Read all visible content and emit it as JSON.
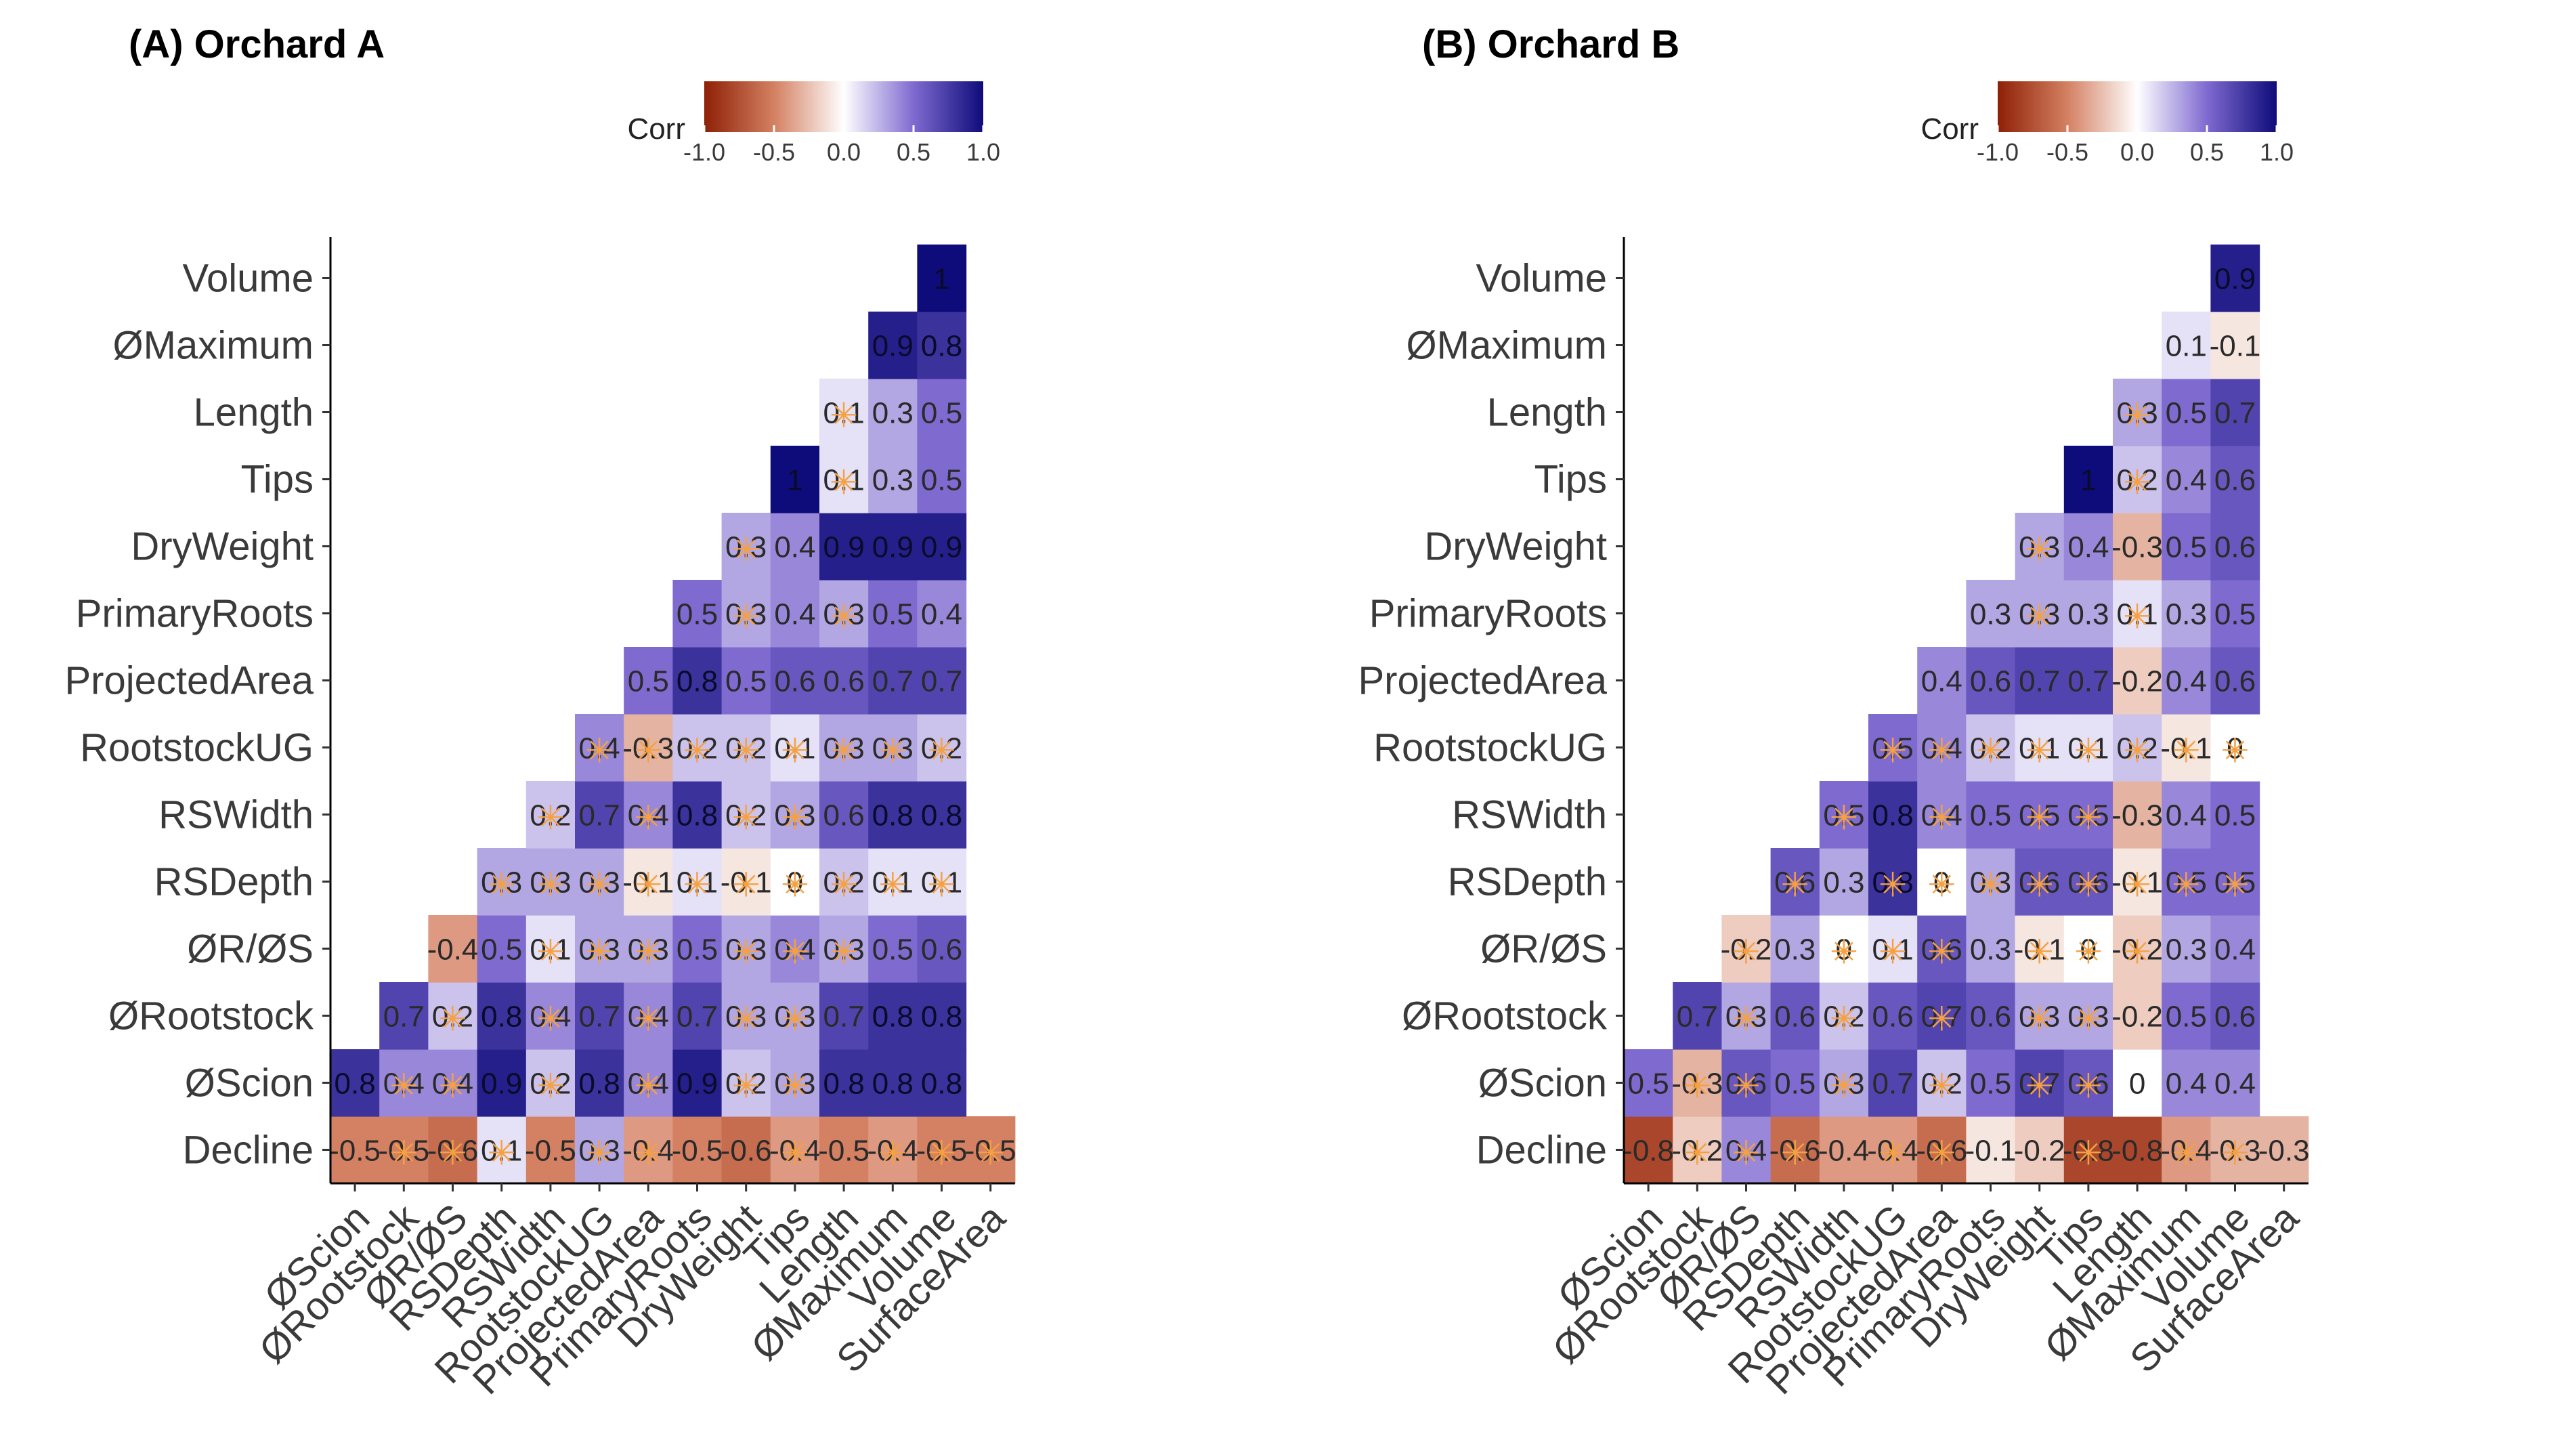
{
  "chart_data": [
    {
      "type": "heatmap",
      "title": "(A) Orchard A",
      "legend": {
        "title": "Corr",
        "range": [
          -1.0,
          1.0
        ],
        "tick_labels": [
          "-1.0",
          "-0.5",
          "0.0",
          "0.5",
          "1.0"
        ],
        "placement": "top-center"
      },
      "x_categories": [
        "ØScion",
        "ØRootstock",
        "ØR/ØS",
        "RSDepth",
        "RSWidth",
        "RootstockUG",
        "ProjectedArea",
        "PrimaryRoots",
        "DryWeight",
        "Tips",
        "Length",
        "ØMaximum",
        "Volume",
        "SurfaceArea"
      ],
      "y_categories": [
        "Decline",
        "ØScion",
        "ØRootstock",
        "ØR/ØS",
        "RSDepth",
        "RSWidth",
        "RootstockUG",
        "ProjectedArea",
        "PrimaryRoots",
        "DryWeight",
        "Tips",
        "Length",
        "ØMaximum",
        "Volume"
      ],
      "rows": [
        {
          "y": "Decline",
          "values": [
            -0.5,
            -0.5,
            -0.6,
            0.1,
            -0.5,
            0.3,
            -0.4,
            -0.5,
            -0.6,
            -0.4,
            -0.5,
            -0.4,
            -0.5,
            -0.5
          ],
          "labels": [
            "-0.5",
            "-0.5",
            "-0.6",
            "0.1",
            "-0.5",
            "0.3",
            "-0.4",
            "-0.5",
            "-0.6",
            "-0.4",
            "-0.5",
            "-0.4",
            "-0.5",
            "-0.5"
          ],
          "nonsig": [
            false,
            true,
            true,
            true,
            false,
            true,
            true,
            false,
            false,
            true,
            false,
            true,
            true,
            true
          ]
        },
        {
          "y": "ØScion",
          "values": [
            0.8,
            0.4,
            0.4,
            0.9,
            0.2,
            0.8,
            0.4,
            0.9,
            0.2,
            0.3,
            0.8,
            0.8,
            0.8
          ],
          "labels": [
            "0.8",
            "0.4",
            "0.4",
            "0.9",
            "0.2",
            "0.8",
            "0.4",
            "0.9",
            "0.2",
            "0.3",
            "0.8",
            "0.8",
            "0.8"
          ],
          "nonsig": [
            false,
            true,
            true,
            false,
            true,
            false,
            true,
            false,
            true,
            true,
            false,
            false,
            false
          ]
        },
        {
          "y": "ØRootstock",
          "values": [
            0.7,
            0.2,
            0.8,
            0.4,
            0.7,
            0.4,
            0.7,
            0.3,
            0.3,
            0.7,
            0.8,
            0.8
          ],
          "labels": [
            "0.7",
            "0.2",
            "0.8",
            "0.4",
            "0.7",
            "0.4",
            "0.7",
            "0.3",
            "0.3",
            "0.7",
            "0.8",
            "0.8"
          ],
          "nonsig": [
            false,
            true,
            false,
            true,
            false,
            true,
            false,
            true,
            true,
            false,
            false,
            false
          ]
        },
        {
          "y": "ØR/ØS",
          "values": [
            -0.4,
            0.5,
            0.1,
            0.3,
            0.3,
            0.5,
            0.3,
            0.4,
            0.3,
            0.5,
            0.6
          ],
          "labels": [
            "-0.4",
            "0.5",
            "0.1",
            "0.3",
            "0.3",
            "0.5",
            "0.3",
            "0.4",
            "0.3",
            "0.5",
            "0.6"
          ],
          "nonsig": [
            false,
            false,
            true,
            true,
            true,
            false,
            true,
            true,
            true,
            false,
            false
          ]
        },
        {
          "y": "RSDepth",
          "values": [
            0.3,
            0.3,
            0.3,
            -0.1,
            0.1,
            -0.1,
            0,
            0.2,
            0.1,
            0.1
          ],
          "labels": [
            "0.3",
            "0.3",
            "0.3",
            "-0.1",
            "0.1",
            "-0.1",
            "0",
            "0.2",
            "0.1",
            "0.1"
          ],
          "nonsig": [
            true,
            true,
            true,
            true,
            true,
            true,
            true,
            true,
            true,
            true
          ]
        },
        {
          "y": "RSWidth",
          "values": [
            0.2,
            0.7,
            0.4,
            0.8,
            0.2,
            0.3,
            0.6,
            0.8,
            0.8
          ],
          "labels": [
            "0.2",
            "0.7",
            "0.4",
            "0.8",
            "0.2",
            "0.3",
            "0.6",
            "0.8",
            "0.8"
          ],
          "nonsig": [
            true,
            false,
            true,
            false,
            true,
            true,
            false,
            false,
            false
          ]
        },
        {
          "y": "RootstockUG",
          "values": [
            0.4,
            -0.3,
            0.2,
            0.2,
            0.1,
            0.3,
            0.3,
            0.2
          ],
          "labels": [
            "0.4",
            "-0.3",
            "0.2",
            "0.2",
            "0.1",
            "0.3",
            "0.3",
            "0.2"
          ],
          "nonsig": [
            true,
            true,
            true,
            true,
            true,
            true,
            true,
            true
          ]
        },
        {
          "y": "ProjectedArea",
          "values": [
            0.5,
            0.8,
            0.5,
            0.6,
            0.6,
            0.7,
            0.7
          ],
          "labels": [
            "0.5",
            "0.8",
            "0.5",
            "0.6",
            "0.6",
            "0.7",
            "0.7"
          ],
          "nonsig": [
            false,
            false,
            false,
            false,
            false,
            false,
            false
          ]
        },
        {
          "y": "PrimaryRoots",
          "values": [
            0.5,
            0.3,
            0.4,
            0.3,
            0.5,
            0.4
          ],
          "labels": [
            "0.5",
            "0.3",
            "0.4",
            "0.3",
            "0.5",
            "0.4"
          ],
          "nonsig": [
            false,
            true,
            false,
            true,
            false,
            false
          ]
        },
        {
          "y": "DryWeight",
          "values": [
            0.3,
            0.4,
            0.9,
            0.9,
            0.9
          ],
          "labels": [
            "0.3",
            "0.4",
            "0.9",
            "0.9",
            "0.9"
          ],
          "nonsig": [
            true,
            false,
            false,
            false,
            false
          ]
        },
        {
          "y": "Tips",
          "values": [
            1,
            0.1,
            0.3,
            0.5
          ],
          "labels": [
            "1",
            "0.1",
            "0.3",
            "0.5"
          ],
          "nonsig": [
            false,
            true,
            false,
            false
          ]
        },
        {
          "y": "Length",
          "values": [
            0.1,
            0.3,
            0.5
          ],
          "labels": [
            "0.1",
            "0.3",
            "0.5"
          ],
          "nonsig": [
            true,
            false,
            false
          ]
        },
        {
          "y": "ØMaximum",
          "values": [
            0.9,
            0.8
          ],
          "labels": [
            "0.9",
            "0.8"
          ],
          "nonsig": [
            false,
            false
          ]
        },
        {
          "y": "Volume",
          "values": [
            1
          ],
          "labels": [
            "1"
          ],
          "nonsig": [
            false
          ]
        }
      ]
    },
    {
      "type": "heatmap",
      "title": "(B) Orchard B",
      "legend": {
        "title": "Corr",
        "range": [
          -1.0,
          1.0
        ],
        "tick_labels": [
          "-1.0",
          "-0.5",
          "0.0",
          "0.5",
          "1.0"
        ],
        "placement": "top-center"
      },
      "x_categories": [
        "ØScion",
        "ØRootstock",
        "ØR/ØS",
        "RSDepth",
        "RSWidth",
        "RootstockUG",
        "ProjectedArea",
        "PrimaryRoots",
        "DryWeight",
        "Tips",
        "Length",
        "ØMaximum",
        "Volume",
        "SurfaceArea"
      ],
      "y_categories": [
        "Decline",
        "ØScion",
        "ØRootstock",
        "ØR/ØS",
        "RSDepth",
        "RSWidth",
        "RootstockUG",
        "ProjectedArea",
        "PrimaryRoots",
        "DryWeight",
        "Tips",
        "Length",
        "ØMaximum",
        "Volume"
      ],
      "rows": [
        {
          "y": "Decline",
          "values": [
            -0.8,
            -0.2,
            0.4,
            -0.6,
            -0.4,
            -0.4,
            -0.6,
            -0.1,
            -0.2,
            -0.8,
            -0.8,
            -0.4,
            -0.3,
            -0.3
          ],
          "labels": [
            "-0.8",
            "-0.2",
            "0.4",
            "-0.6",
            "-0.4",
            "-0.4",
            "-0.6",
            "-0.1",
            "-0.2",
            "-0.8",
            "-0.8",
            "-0.4",
            "-0.3",
            "-0.3"
          ],
          "nonsig": [
            false,
            true,
            true,
            true,
            false,
            true,
            true,
            false,
            false,
            true,
            false,
            true,
            true,
            false
          ]
        },
        {
          "y": "ØScion",
          "values": [
            0.5,
            -0.3,
            0.6,
            0.5,
            0.3,
            0.7,
            0.2,
            0.5,
            0.7,
            0.6,
            0,
            0.4,
            0.4
          ],
          "labels": [
            "0.5",
            "-0.3",
            "0.6",
            "0.5",
            "0.3",
            "0.7",
            "0.2",
            "0.5",
            "0.7",
            "0.6",
            "0",
            "0.4",
            "0.4"
          ],
          "nonsig": [
            false,
            true,
            true,
            false,
            true,
            false,
            true,
            false,
            true,
            true,
            false,
            false,
            false
          ]
        },
        {
          "y": "ØRootstock",
          "values": [
            0.7,
            0.3,
            0.6,
            0.2,
            0.6,
            0.7,
            0.6,
            0.3,
            0.3,
            -0.2,
            0.5,
            0.6
          ],
          "labels": [
            "0.7",
            "0.3",
            "0.6",
            "0.2",
            "0.6",
            "0.7",
            "0.6",
            "0.3",
            "0.3",
            "-0.2",
            "0.5",
            "0.6"
          ],
          "nonsig": [
            false,
            true,
            false,
            true,
            false,
            true,
            false,
            true,
            true,
            false,
            false,
            false
          ]
        },
        {
          "y": "ØR/ØS",
          "values": [
            -0.2,
            0.3,
            0,
            0.1,
            0.6,
            0.3,
            -0.1,
            0,
            -0.2,
            0.3,
            0.4
          ],
          "labels": [
            "-0.2",
            "0.3",
            "0",
            "0.1",
            "0.6",
            "0.3",
            "-0.1",
            "0",
            "-0.2",
            "0.3",
            "0.4"
          ],
          "nonsig": [
            true,
            false,
            true,
            true,
            true,
            false,
            true,
            true,
            true,
            false,
            false
          ]
        },
        {
          "y": "RSDepth",
          "values": [
            0.6,
            0.3,
            0.8,
            0,
            0.3,
            0.6,
            0.6,
            -0.1,
            0.5,
            0.5
          ],
          "labels": [
            "0.6",
            "0.3",
            "0.8",
            "0",
            "0.3",
            "0.6",
            "0.6",
            "-0.1",
            "0.5",
            "0.5"
          ],
          "nonsig": [
            true,
            false,
            true,
            true,
            true,
            true,
            true,
            true,
            true,
            true
          ]
        },
        {
          "y": "RSWidth",
          "values": [
            0.5,
            0.8,
            0.4,
            0.5,
            0.5,
            0.5,
            -0.3,
            0.4,
            0.5
          ],
          "labels": [
            "0.5",
            "0.8",
            "0.4",
            "0.5",
            "0.5",
            "0.5",
            "-0.3",
            "0.4",
            "0.5"
          ],
          "nonsig": [
            true,
            false,
            true,
            false,
            true,
            true,
            false,
            false,
            false
          ]
        },
        {
          "y": "RootstockUG",
          "values": [
            0.5,
            0.4,
            0.2,
            0.1,
            0.1,
            0.2,
            -0.1,
            0
          ],
          "labels": [
            "0.5",
            "0.4",
            "0.2",
            "0.1",
            "0.1",
            "0.2",
            "-0.1",
            "0"
          ],
          "nonsig": [
            true,
            true,
            true,
            true,
            true,
            true,
            true,
            true
          ]
        },
        {
          "y": "ProjectedArea",
          "values": [
            0.4,
            0.6,
            0.7,
            0.7,
            -0.2,
            0.4,
            0.6
          ],
          "labels": [
            "0.4",
            "0.6",
            "0.7",
            "0.7",
            "-0.2",
            "0.4",
            "0.6"
          ],
          "nonsig": [
            false,
            false,
            false,
            false,
            false,
            false,
            false
          ]
        },
        {
          "y": "PrimaryRoots",
          "values": [
            0.3,
            0.3,
            0.3,
            0.1,
            0.3,
            0.5
          ],
          "labels": [
            "0.3",
            "0.3",
            "0.3",
            "0.1",
            "0.3",
            "0.5"
          ],
          "nonsig": [
            false,
            true,
            false,
            true,
            false,
            false
          ]
        },
        {
          "y": "DryWeight",
          "values": [
            0.3,
            0.4,
            -0.3,
            0.5,
            0.6
          ],
          "labels": [
            "0.3",
            "0.4",
            "-0.3",
            "0.5",
            "0.6"
          ],
          "nonsig": [
            true,
            false,
            false,
            false,
            false
          ]
        },
        {
          "y": "Tips",
          "values": [
            1,
            0.2,
            0.4,
            0.6
          ],
          "labels": [
            "1",
            "0.2",
            "0.4",
            "0.6"
          ],
          "nonsig": [
            false,
            true,
            false,
            false
          ]
        },
        {
          "y": "Length",
          "values": [
            0.3,
            0.5,
            0.7
          ],
          "labels": [
            "0.3",
            "0.5",
            "0.7"
          ],
          "nonsig": [
            true,
            false,
            false
          ]
        },
        {
          "y": "ØMaximum",
          "values": [
            0.1,
            -0.1
          ],
          "labels": [
            "0.1",
            "-0.1"
          ],
          "nonsig": [
            false,
            false
          ]
        },
        {
          "y": "Volume",
          "values": [
            0.9
          ],
          "labels": [
            "0.9"
          ],
          "nonsig": [
            false
          ]
        }
      ]
    }
  ]
}
